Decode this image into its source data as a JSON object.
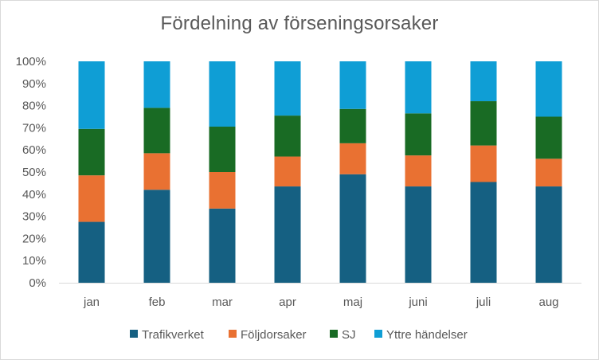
{
  "chart_data": {
    "type": "bar",
    "stacked": "percent",
    "title": "Fördelning av förseningsorsaker",
    "xlabel": "",
    "ylabel": "",
    "ylim": [
      0,
      100
    ],
    "yticks": [
      "0%",
      "10%",
      "20%",
      "30%",
      "40%",
      "50%",
      "60%",
      "70%",
      "80%",
      "90%",
      "100%"
    ],
    "grid": false,
    "legend_position": "bottom",
    "categories": [
      "jan",
      "feb",
      "mar",
      "apr",
      "maj",
      "juni",
      "juli",
      "aug"
    ],
    "series": [
      {
        "name": "Trafikverket",
        "color": "#156082",
        "values": [
          27.5,
          42,
          33.5,
          43.5,
          49,
          43.5,
          45.5,
          43.5
        ]
      },
      {
        "name": "Följdorsaker",
        "color": "#e97132",
        "values": [
          21,
          16.5,
          16.5,
          13.5,
          14,
          14,
          16.5,
          12.5
        ]
      },
      {
        "name": "SJ",
        "color": "#196b24",
        "values": [
          21,
          20.5,
          20.5,
          18.5,
          15.5,
          19,
          20,
          19
        ]
      },
      {
        "name": "Yttre händelser",
        "color": "#0f9ed5",
        "values": [
          30.5,
          21,
          29.5,
          24.5,
          21.5,
          23.5,
          18,
          25
        ]
      }
    ]
  }
}
